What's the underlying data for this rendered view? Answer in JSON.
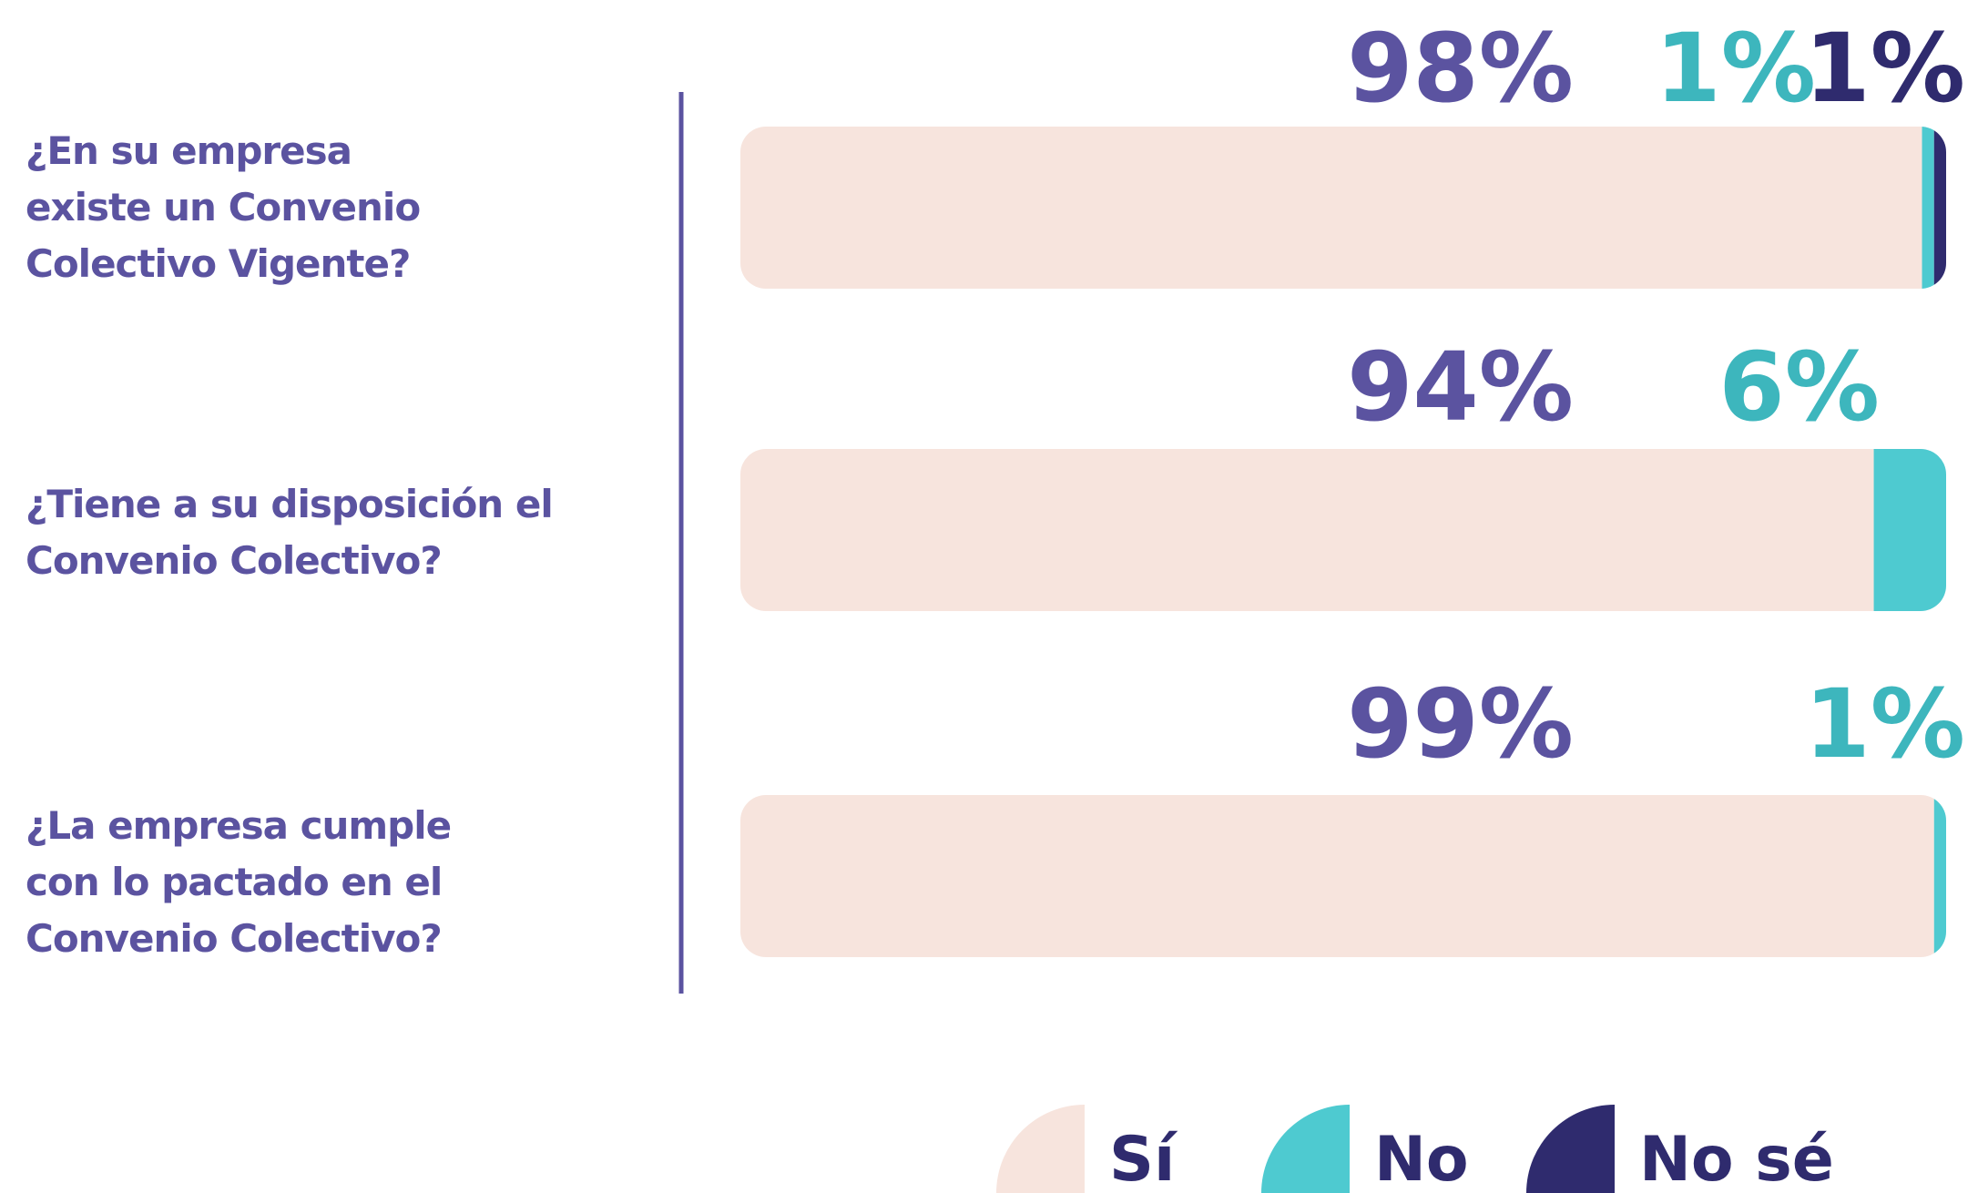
{
  "chart_data": {
    "type": "stacked-bar-horizontal",
    "categories": [
      "¿En su empresa existe un Convenio Colectivo Vigente?",
      "¿Tiene a su disposición el Convenio Colectivo?",
      "¿La empresa cumple con lo pactado en el Convenio Colectivo?"
    ],
    "series": [
      {
        "name": "Sí",
        "color": "#f7e4dd",
        "label_color": "#5b53a0",
        "values": [
          98,
          94,
          99
        ],
        "value_labels": [
          "98%",
          "94%",
          "99%"
        ]
      },
      {
        "name": "No",
        "color": "#4ecad0",
        "label_color": "#3db6bd",
        "values": [
          1,
          6,
          1
        ],
        "value_labels": [
          "1%",
          "6%",
          "1%"
        ]
      },
      {
        "name": "No sé",
        "color": "#2f2b6e",
        "label_color": "#2f2b6e",
        "values": [
          1,
          null,
          null
        ],
        "value_labels": [
          "1%",
          null,
          null
        ]
      }
    ]
  }
}
